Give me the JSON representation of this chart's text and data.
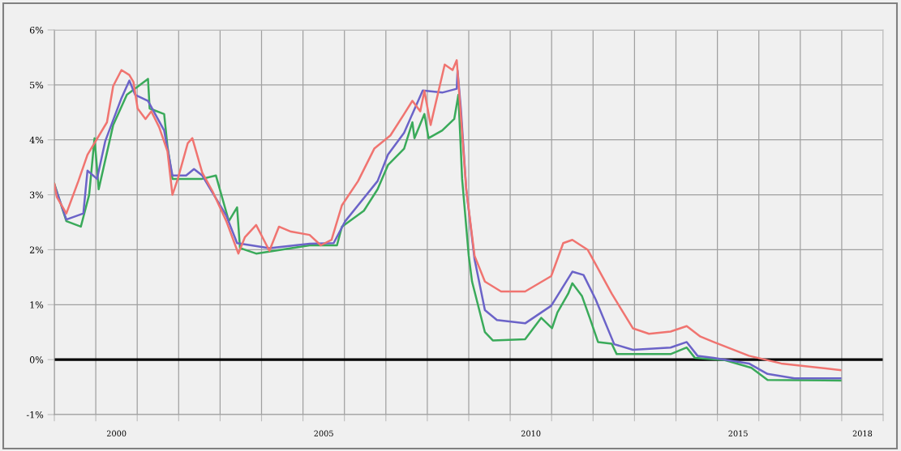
{
  "chart_data": {
    "type": "line",
    "xlim": [
      1999,
      2019
    ],
    "ylim": [
      -1,
      6
    ],
    "xticks": [
      {
        "value": 1999,
        "label": null
      },
      {
        "value": 2000,
        "label": null
      },
      {
        "value": 2001,
        "label": null
      },
      {
        "value": 2002,
        "label": null
      },
      {
        "value": 2003,
        "label": null
      },
      {
        "value": 2004,
        "label": null
      },
      {
        "value": 2005,
        "label": null
      },
      {
        "value": 2006,
        "label": null
      },
      {
        "value": 2007,
        "label": null
      },
      {
        "value": 2008,
        "label": null
      },
      {
        "value": 2009,
        "label": null
      },
      {
        "value": 2010,
        "label": null
      },
      {
        "value": 2011,
        "label": null
      },
      {
        "value": 2012,
        "label": null
      },
      {
        "value": 2013,
        "label": null
      },
      {
        "value": 2014,
        "label": null
      },
      {
        "value": 2015,
        "label": null
      },
      {
        "value": 2016,
        "label": null
      },
      {
        "value": 2017,
        "label": null
      },
      {
        "value": 2018,
        "label": null
      },
      {
        "value": 2019,
        "label": null
      },
      {
        "value": 2000.5,
        "label": "2000"
      },
      {
        "value": 2005.5,
        "label": "2005"
      },
      {
        "value": 2010.5,
        "label": "2010"
      },
      {
        "value": 2015.5,
        "label": "2015"
      },
      {
        "value": 2018.5,
        "label": "2018"
      }
    ],
    "yticks": [
      {
        "value": -1,
        "label": "-1%"
      },
      {
        "value": 0,
        "label": "0%"
      },
      {
        "value": 1,
        "label": "1%"
      },
      {
        "value": 2,
        "label": "2%"
      },
      {
        "value": 3,
        "label": "3%"
      },
      {
        "value": 4,
        "label": "4%"
      },
      {
        "value": 5,
        "label": "5%"
      },
      {
        "value": 6,
        "label": "6%"
      }
    ],
    "grid": true,
    "ref_lines": [
      {
        "axis": "y",
        "value": 0,
        "color": "#000000"
      }
    ],
    "series": [
      {
        "color": "#f07470",
        "x": [
          1999.0,
          1999.06,
          1999.29,
          1999.58,
          1999.8,
          2000.27,
          2000.42,
          2000.62,
          2000.81,
          2000.91,
          2001.01,
          2001.2,
          2001.34,
          2001.53,
          2001.73,
          2001.85,
          2001.98,
          2002.22,
          2002.33,
          2002.57,
          2002.82,
          2003.15,
          2003.44,
          2003.6,
          2003.87,
          2004.19,
          2004.42,
          2004.71,
          2005.16,
          2005.43,
          2005.69,
          2005.94,
          2006.33,
          2006.72,
          2007.11,
          2007.44,
          2007.64,
          2007.83,
          2007.93,
          2008.08,
          2008.42,
          2008.61,
          2008.71,
          2008.75,
          2008.94,
          2009.14,
          2009.39,
          2009.78,
          2010.36,
          2010.99,
          2011.28,
          2011.5,
          2011.87,
          2012.45,
          2012.96,
          2013.35,
          2013.87,
          2014.26,
          2014.59,
          2014.91,
          2015.76,
          2016.54,
          2017.97
        ],
        "values": [
          3.2,
          2.96,
          2.66,
          3.25,
          3.73,
          4.32,
          4.98,
          5.27,
          5.18,
          5.05,
          4.57,
          4.38,
          4.52,
          4.23,
          3.79,
          3.0,
          3.29,
          3.94,
          4.03,
          3.4,
          3.06,
          2.52,
          1.93,
          2.23,
          2.45,
          1.98,
          2.42,
          2.33,
          2.27,
          2.08,
          2.18,
          2.81,
          3.25,
          3.84,
          4.08,
          4.47,
          4.71,
          4.52,
          4.89,
          4.27,
          5.37,
          5.27,
          5.45,
          5.05,
          3.1,
          1.89,
          1.42,
          1.24,
          1.24,
          1.52,
          2.12,
          2.18,
          2.0,
          1.2,
          0.57,
          0.47,
          0.51,
          0.61,
          0.42,
          0.32,
          0.07,
          -0.07,
          -0.19
        ]
      },
      {
        "color": "#6b63c8",
        "x": [
          1999.0,
          1999.29,
          1999.7,
          1999.8,
          2000.03,
          2000.23,
          2000.62,
          2000.81,
          2000.95,
          2001.26,
          2001.65,
          2001.85,
          2002.18,
          2002.37,
          2002.57,
          2003.15,
          2003.41,
          2004.19,
          2005.16,
          2005.74,
          2006.02,
          2006.8,
          2007.05,
          2007.44,
          2007.89,
          2008.36,
          2008.71,
          2008.73,
          2008.81,
          2008.94,
          2009.14,
          2009.39,
          2009.68,
          2010.36,
          2010.99,
          2011.5,
          2011.77,
          2012.06,
          2012.51,
          2012.96,
          2013.87,
          2014.26,
          2014.52,
          2014.91,
          2015.76,
          2016.21,
          2016.86,
          2017.97
        ],
        "values": [
          3.18,
          2.55,
          2.66,
          3.44,
          3.29,
          3.98,
          4.76,
          5.08,
          4.82,
          4.71,
          4.17,
          3.35,
          3.35,
          3.47,
          3.35,
          2.62,
          2.12,
          2.03,
          2.11,
          2.12,
          2.52,
          3.25,
          3.73,
          4.13,
          4.9,
          4.86,
          4.93,
          5.26,
          4.57,
          3.1,
          1.83,
          0.9,
          0.72,
          0.66,
          0.98,
          1.6,
          1.54,
          1.1,
          0.28,
          0.18,
          0.22,
          0.32,
          0.07,
          0.03,
          -0.07,
          -0.26,
          -0.34,
          -0.34
        ]
      },
      {
        "color": "#3aaa5a",
        "x": [
          1999.0,
          1999.29,
          1999.64,
          1999.74,
          1999.84,
          1999.97,
          2000.07,
          2000.42,
          2000.75,
          2001.07,
          2001.26,
          2001.3,
          2001.65,
          2001.73,
          2001.85,
          2002.57,
          2002.9,
          2003.21,
          2003.41,
          2003.48,
          2003.87,
          2005.16,
          2005.82,
          2005.94,
          2006.47,
          2006.8,
          2007.05,
          2007.44,
          2007.64,
          2007.69,
          2007.93,
          2008.03,
          2008.36,
          2008.65,
          2008.75,
          2008.84,
          2009.0,
          2009.08,
          2009.39,
          2009.58,
          2010.36,
          2010.75,
          2011.01,
          2011.14,
          2011.4,
          2011.5,
          2011.73,
          2011.92,
          2012.12,
          2012.45,
          2012.57,
          2013.87,
          2014.26,
          2014.46,
          2015.18,
          2015.82,
          2016.21,
          2017.97
        ],
        "values": [
          3.2,
          2.52,
          2.42,
          2.71,
          3.0,
          4.03,
          3.1,
          4.27,
          4.82,
          5.0,
          5.11,
          4.57,
          4.47,
          3.88,
          3.29,
          3.29,
          3.35,
          2.52,
          2.77,
          2.03,
          1.93,
          2.08,
          2.08,
          2.42,
          2.71,
          3.1,
          3.54,
          3.84,
          4.32,
          4.03,
          4.47,
          4.03,
          4.17,
          4.38,
          4.82,
          3.29,
          1.89,
          1.42,
          0.5,
          0.35,
          0.37,
          0.76,
          0.57,
          0.86,
          1.2,
          1.39,
          1.16,
          0.76,
          0.32,
          0.29,
          0.1,
          0.1,
          0.22,
          0.03,
          -0.01,
          -0.15,
          -0.37,
          -0.38
        ]
      }
    ]
  }
}
